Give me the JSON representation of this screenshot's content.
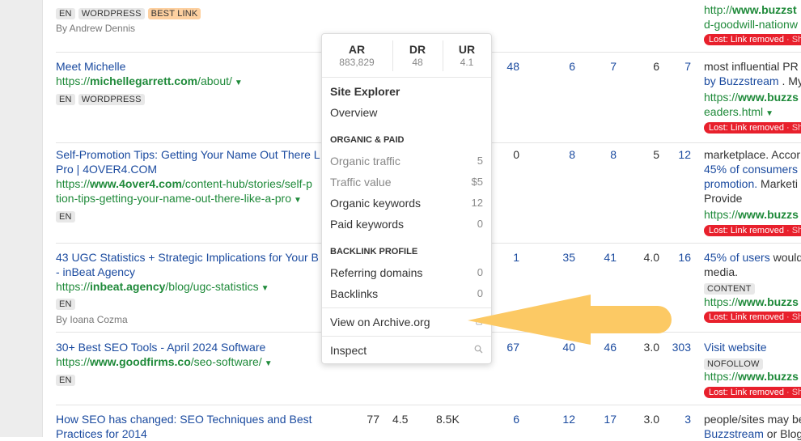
{
  "rows": [
    {
      "tags": [
        "EN",
        "WORDPRESS",
        "BEST LINK"
      ],
      "author": "By Andrew Dennis",
      "right": {
        "url_pre": "http://",
        "url_bold": "www.buzzst",
        "url_line2": "d-goodwill-nationw"
      }
    },
    {
      "title": [
        "Meet Michelle"
      ],
      "url_pre": "https://",
      "url_bold": "michellegarrett.com",
      "url_post": "/about/",
      "tags": [
        "EN",
        "WORDPRESS"
      ],
      "metrics": [
        "48",
        "6",
        "7",
        "6",
        "7"
      ],
      "right": {
        "text1": "most influential PR",
        "link2": "by Buzzstream",
        "text2": " . My",
        "url_pre": "https://",
        "url_bold": "www.buzzs",
        "url_line2": "eaders.html"
      }
    },
    {
      "title": [
        "Self-Promotion Tips: Getting Your Name Out There L",
        "Pro | 4OVER4.COM"
      ],
      "url_pre": "https://",
      "url_bold": "www.4over4.com",
      "url_post": "/content-hub/stories/self-p",
      "url_line2": "tion-tips-getting-your-name-out-there-like-a-pro",
      "tags": [
        "EN"
      ],
      "metrics": [
        "0",
        "8",
        "8",
        "5",
        "12"
      ],
      "right": {
        "text1": "marketplace. Accor",
        "link2": "45% of consumers",
        "link3": "promotion.",
        "text3": " Marketi",
        "text4": "Provide",
        "url_pre": "https://",
        "url_bold": "www.buzzs"
      }
    },
    {
      "title": [
        "43 UGC Statistics + Strategic Implications for Your B",
        "- inBeat Agency"
      ],
      "url_pre": "https://",
      "url_bold": "inbeat.agency",
      "url_post": "/blog/ugc-statistics",
      "tags": [
        "EN"
      ],
      "author": "By Ioana Cozma",
      "metrics": [
        "1",
        "35",
        "41",
        "4.0",
        "16"
      ],
      "right": {
        "link1": "45% of users",
        "text1": " would",
        "text2": "media.",
        "tag": "CONTENT",
        "url_pre": "https://",
        "url_bold": "www.buzzs"
      }
    },
    {
      "title": [
        "30+ Best SEO Tools - April 2024 Software"
      ],
      "url_pre": "https://",
      "url_bold": "www.goodfirms.co",
      "url_post": "/seo-software/",
      "tags": [
        "EN"
      ],
      "metrics": [
        "67",
        "40",
        "46",
        "3.0",
        "303"
      ],
      "right": {
        "link1": "Visit website",
        "tag": "NOFOLLOW",
        "url_pre": "https://",
        "url_bold": "www.buzzs"
      }
    },
    {
      "title": [
        "How SEO has changed: SEO Techniques and Best",
        "Practices for 2014"
      ],
      "extra": [
        "77",
        "4.5",
        "8.5K"
      ],
      "metrics": [
        "6",
        "12",
        "17",
        "3.0",
        "3"
      ],
      "right": {
        "text1": "people/sites may be",
        "link2": "Buzzstream",
        "text2": " or Blog"
      }
    }
  ],
  "lost_label": "Lost: Link removed",
  "lost_suffix": " · Sh",
  "popup": {
    "metrics": [
      {
        "label": "AR",
        "value": "883,829"
      },
      {
        "label": "DR",
        "value": "48"
      },
      {
        "label": "UR",
        "value": "4.1"
      }
    ],
    "site_explorer": "Site Explorer",
    "overview": "Overview",
    "organic_paid": "ORGANIC & PAID",
    "organic_traffic": {
      "label": "Organic traffic",
      "value": "5"
    },
    "traffic_value": {
      "label": "Traffic value",
      "value": "$5"
    },
    "organic_keywords": {
      "label": "Organic keywords",
      "value": "12"
    },
    "paid_keywords": {
      "label": "Paid keywords",
      "value": "0"
    },
    "backlink_profile": "BACKLINK PROFILE",
    "referring_domains": {
      "label": "Referring domains",
      "value": "0"
    },
    "backlinks": {
      "label": "Backlinks",
      "value": "0"
    },
    "archive": "View on Archive.org",
    "inspect": "Inspect"
  },
  "colors": {
    "link": "#1a4a9f",
    "url": "#1f8a3a",
    "lost": "#e8202c",
    "arrow": "#fcc964",
    "best_tag": "#fdd0a0"
  }
}
